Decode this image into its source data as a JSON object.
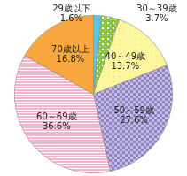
{
  "chart_data": {
    "type": "pie",
    "categories": [
      "29歳以下",
      "30～39歳",
      "40～49歳",
      "50～59歳",
      "60～69歳",
      "70歳以上"
    ],
    "values": [
      1.6,
      3.7,
      13.7,
      27.6,
      36.6,
      16.8
    ],
    "value_labels": [
      "1.6%",
      "3.7%",
      "13.7%",
      "27.6%",
      "36.6%",
      "16.8%"
    ],
    "colors": [
      "#5bc4ea",
      "#8cc63f",
      "#fff6a0",
      "#8e80c4",
      "#f6b3cf",
      "#f8a83e"
    ],
    "data_labels": true
  }
}
